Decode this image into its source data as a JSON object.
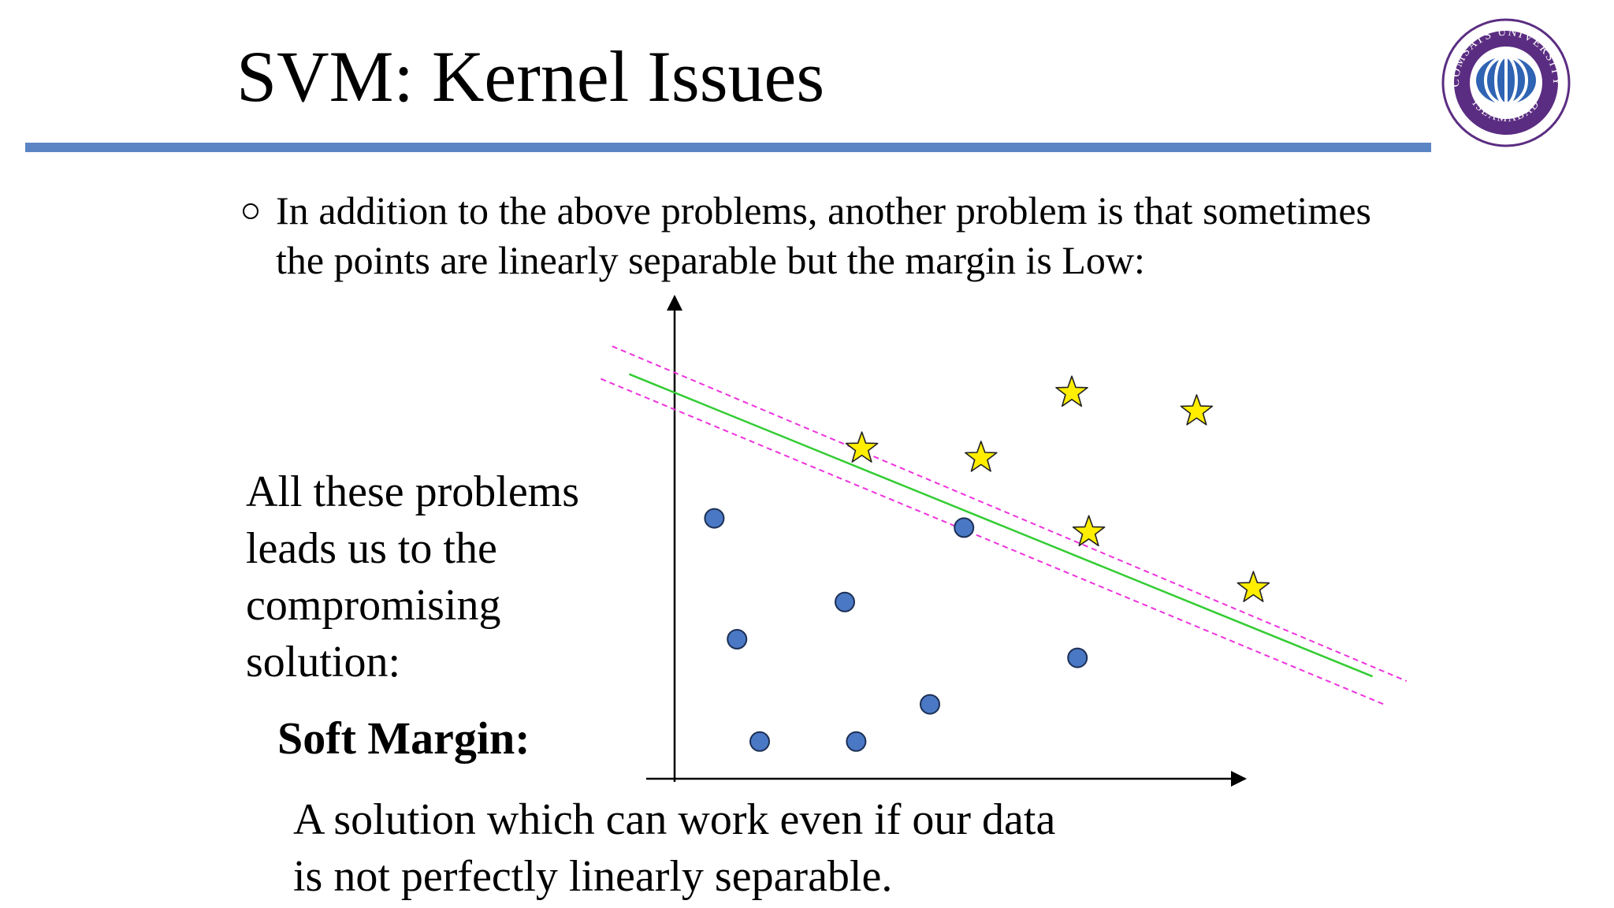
{
  "slide": {
    "title": "SVM: Kernel Issues",
    "bullet": "In addition to the above problems, another problem is that sometimes the points are linearly separable but the margin is Low:",
    "side_text": "All these problems leads us to the compromising solution:",
    "soft_margin_title": "Soft Margin:",
    "solution_text": "A solution which can work even if our data is not perfectly linearly separable."
  },
  "logo": {
    "top_text": "COMSATS UNIVERSITY",
    "bottom_text": "ISLAMABAD",
    "ring_color": "#5b2d82",
    "globe_color": "#2f63b3"
  },
  "colors": {
    "title_rule": "#5b84c4",
    "separator": "#33cc33",
    "margin": "#ee33dd",
    "star_fill": "#ffee00",
    "circle_fill": "#4a78c4"
  },
  "chart_data": {
    "type": "scatter",
    "title": "",
    "xlabel": "",
    "ylabel": "",
    "xlim": [
      0,
      100
    ],
    "ylim": [
      0,
      100
    ],
    "series": [
      {
        "marker": "circle",
        "points": [
          [
            7,
            56
          ],
          [
            11,
            30
          ],
          [
            15,
            8
          ],
          [
            30,
            38
          ],
          [
            32,
            8
          ],
          [
            45,
            16
          ],
          [
            51,
            54
          ],
          [
            71,
            26
          ]
        ]
      },
      {
        "marker": "star",
        "points": [
          [
            33,
            71
          ],
          [
            54,
            69
          ],
          [
            70,
            83
          ],
          [
            73,
            53
          ],
          [
            92,
            79
          ],
          [
            102,
            41
          ]
        ]
      }
    ],
    "lines": [
      {
        "role": "separator",
        "style": "solid",
        "from": [
          -8,
          87
        ],
        "to": [
          123,
          22
        ]
      },
      {
        "role": "margin",
        "style": "dashed",
        "from": [
          -11,
          93
        ],
        "to": [
          129,
          21
        ]
      },
      {
        "role": "margin",
        "style": "dashed",
        "from": [
          -13,
          86
        ],
        "to": [
          125,
          16
        ]
      }
    ]
  }
}
